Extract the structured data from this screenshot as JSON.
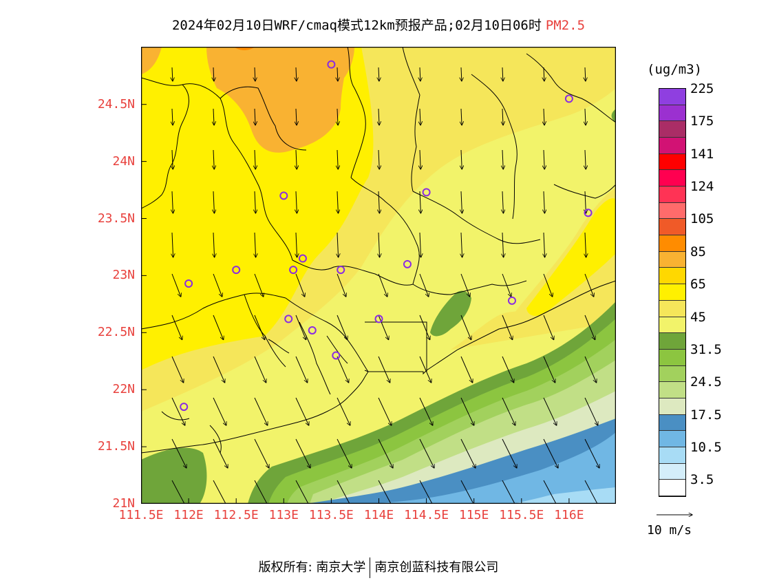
{
  "title": {
    "text": "2024年02月10日WRF/cmaq模式12km预报产品;02月10日06时",
    "pollutant": "PM2.5",
    "pollutant_color": "#e8403c"
  },
  "axes": {
    "x_ticks": [
      "111.5E",
      "112E",
      "112.5E",
      "113E",
      "113.5E",
      "114E",
      "114.5E",
      "115E",
      "115.5E",
      "116E"
    ],
    "x_values": [
      111.5,
      112,
      112.5,
      113,
      113.5,
      114,
      114.5,
      115,
      115.5,
      116
    ],
    "y_ticks": [
      "21N",
      "21.5N",
      "22N",
      "22.5N",
      "23N",
      "23.5N",
      "24N",
      "24.5N"
    ],
    "y_values": [
      21,
      21.5,
      22,
      22.5,
      23,
      23.5,
      24,
      24.5
    ],
    "lon_range": [
      111.5,
      116.5
    ],
    "lat_range": [
      21.0,
      25.0
    ],
    "tick_color": "#e8403c"
  },
  "legend": {
    "unit": "(ug/m3)",
    "colors": [
      "#ffffff",
      "#d4eefa",
      "#a8dcf5",
      "#70b7e4",
      "#4a8fc3",
      "#dde9c0",
      "#c1df86",
      "#a2d15d",
      "#8cc540",
      "#6fa53a",
      "#f2f36a",
      "#f5e65a",
      "#fff000",
      "#ffd800",
      "#f9b232",
      "#ff8c00",
      "#f05a28",
      "#ff6b6b",
      "#ff3355",
      "#ff0050",
      "#ff0000",
      "#d21274",
      "#aa2d66",
      "#9b30d0",
      "#8f3fe0"
    ],
    "labels": [
      {
        "text": "3.5",
        "index": 1
      },
      {
        "text": "10.5",
        "index": 3
      },
      {
        "text": "17.5",
        "index": 5
      },
      {
        "text": "24.5",
        "index": 7
      },
      {
        "text": "31.5",
        "index": 9
      },
      {
        "text": "45",
        "index": 11
      },
      {
        "text": "65",
        "index": 13
      },
      {
        "text": "85",
        "index": 15
      },
      {
        "text": "105",
        "index": 17
      },
      {
        "text": "124",
        "index": 19
      },
      {
        "text": "141",
        "index": 21
      },
      {
        "text": "175",
        "index": 23
      },
      {
        "text": "225",
        "index": 25
      }
    ]
  },
  "reference_vector": {
    "label": "10 m/s"
  },
  "stations": [
    {
      "lon": 113.5,
      "lat": 24.85
    },
    {
      "lon": 116.0,
      "lat": 24.55
    },
    {
      "lon": 113.0,
      "lat": 23.7
    },
    {
      "lon": 114.5,
      "lat": 23.73
    },
    {
      "lon": 116.2,
      "lat": 23.55
    },
    {
      "lon": 112.5,
      "lat": 23.05
    },
    {
      "lon": 113.2,
      "lat": 23.15
    },
    {
      "lon": 113.1,
      "lat": 23.05
    },
    {
      "lon": 113.6,
      "lat": 23.05
    },
    {
      "lon": 114.3,
      "lat": 23.1
    },
    {
      "lon": 112.0,
      "lat": 22.93
    },
    {
      "lon": 115.4,
      "lat": 22.78
    },
    {
      "lon": 113.05,
      "lat": 22.62
    },
    {
      "lon": 113.3,
      "lat": 22.52
    },
    {
      "lon": 114.0,
      "lat": 22.62
    },
    {
      "lon": 113.55,
      "lat": 22.3
    },
    {
      "lon": 111.95,
      "lat": 21.85
    }
  ],
  "copyright": {
    "left": "版权所有: 南京大学",
    "right": "南京创蓝科技有限公司"
  }
}
